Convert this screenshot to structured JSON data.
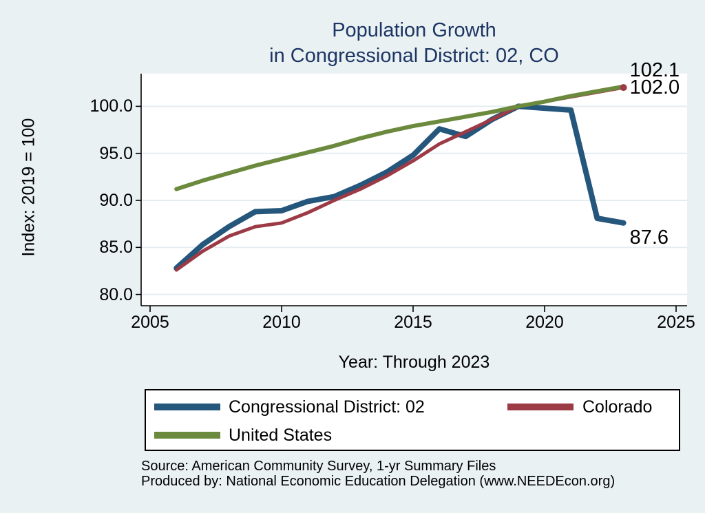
{
  "page": {
    "background": "#EAF1F3",
    "plot_background": "#FFFFFF",
    "grid_color": "#E4EDF0"
  },
  "title": {
    "line1": "Population Growth",
    "line2": "in Congressional District: 02, CO",
    "color": "#1C3563"
  },
  "axes": {
    "y_label": "Index: 2019 = 100",
    "x_label": "Year: Through 2023",
    "y_ticks": [
      {
        "label": "100.0",
        "value": 100
      },
      {
        "label": "95.0",
        "value": 95
      },
      {
        "label": "90.0",
        "value": 90
      },
      {
        "label": "85.0",
        "value": 85
      },
      {
        "label": "80.0",
        "value": 80
      }
    ],
    "x_ticks": [
      {
        "label": "2005",
        "value": 2005
      },
      {
        "label": "2010",
        "value": 2010
      },
      {
        "label": "2015",
        "value": 2015
      },
      {
        "label": "2020",
        "value": 2020
      },
      {
        "label": "2025",
        "value": 2025
      }
    ]
  },
  "chart_data": {
    "type": "line",
    "title": "Population Growth in Congressional District: 02, CO",
    "xlabel": "Year: Through 2023",
    "ylabel": "Index: 2019 = 100",
    "x_range": [
      2005,
      2025
    ],
    "y_range": [
      78.8,
      103.5
    ],
    "grid": true,
    "legend_position": "bottom",
    "years": [
      2006,
      2007,
      2008,
      2009,
      2010,
      2011,
      2012,
      2013,
      2014,
      2015,
      2016,
      2017,
      2018,
      2019,
      2020,
      2021,
      2022,
      2023
    ],
    "series": [
      {
        "name": "Congressional District: 02",
        "color": "#25567B",
        "width": 8,
        "end_label": "87.6",
        "end_marker": false,
        "values": [
          82.8,
          85.3,
          87.2,
          88.8,
          88.9,
          89.9,
          90.4,
          91.6,
          93.0,
          94.8,
          97.6,
          96.8,
          98.6,
          100.0,
          99.8,
          99.6,
          88.1,
          87.6
        ]
      },
      {
        "name": "Colorado",
        "color": "#9C3A45",
        "width": 5,
        "end_label": "102.0",
        "end_marker": true,
        "values": [
          82.6,
          84.6,
          86.2,
          87.2,
          87.6,
          88.7,
          90.0,
          91.2,
          92.6,
          94.2,
          96.0,
          97.3,
          98.6,
          100.0,
          100.5,
          101.0,
          101.5,
          102.0
        ]
      },
      {
        "name": "United States",
        "color": "#6C8A3D",
        "width": 6,
        "end_label": "102.1",
        "end_marker": false,
        "values": [
          91.2,
          92.1,
          92.9,
          93.7,
          94.4,
          95.1,
          95.8,
          96.6,
          97.3,
          97.9,
          98.4,
          98.9,
          99.4,
          100.0,
          100.5,
          101.1,
          101.6,
          102.1
        ]
      }
    ]
  },
  "legend": {
    "items": [
      {
        "label": "Congressional District: 02",
        "color": "#25567B"
      },
      {
        "label": "Colorado",
        "color": "#9C3A45"
      },
      {
        "label": "United States",
        "color": "#6C8A3D"
      }
    ]
  },
  "footer": {
    "line1": "Source: American Community Survey, 1-yr Summary Files",
    "line2": "Produced by: National Economic Education Delegation (www.NEEDEcon.org)"
  }
}
